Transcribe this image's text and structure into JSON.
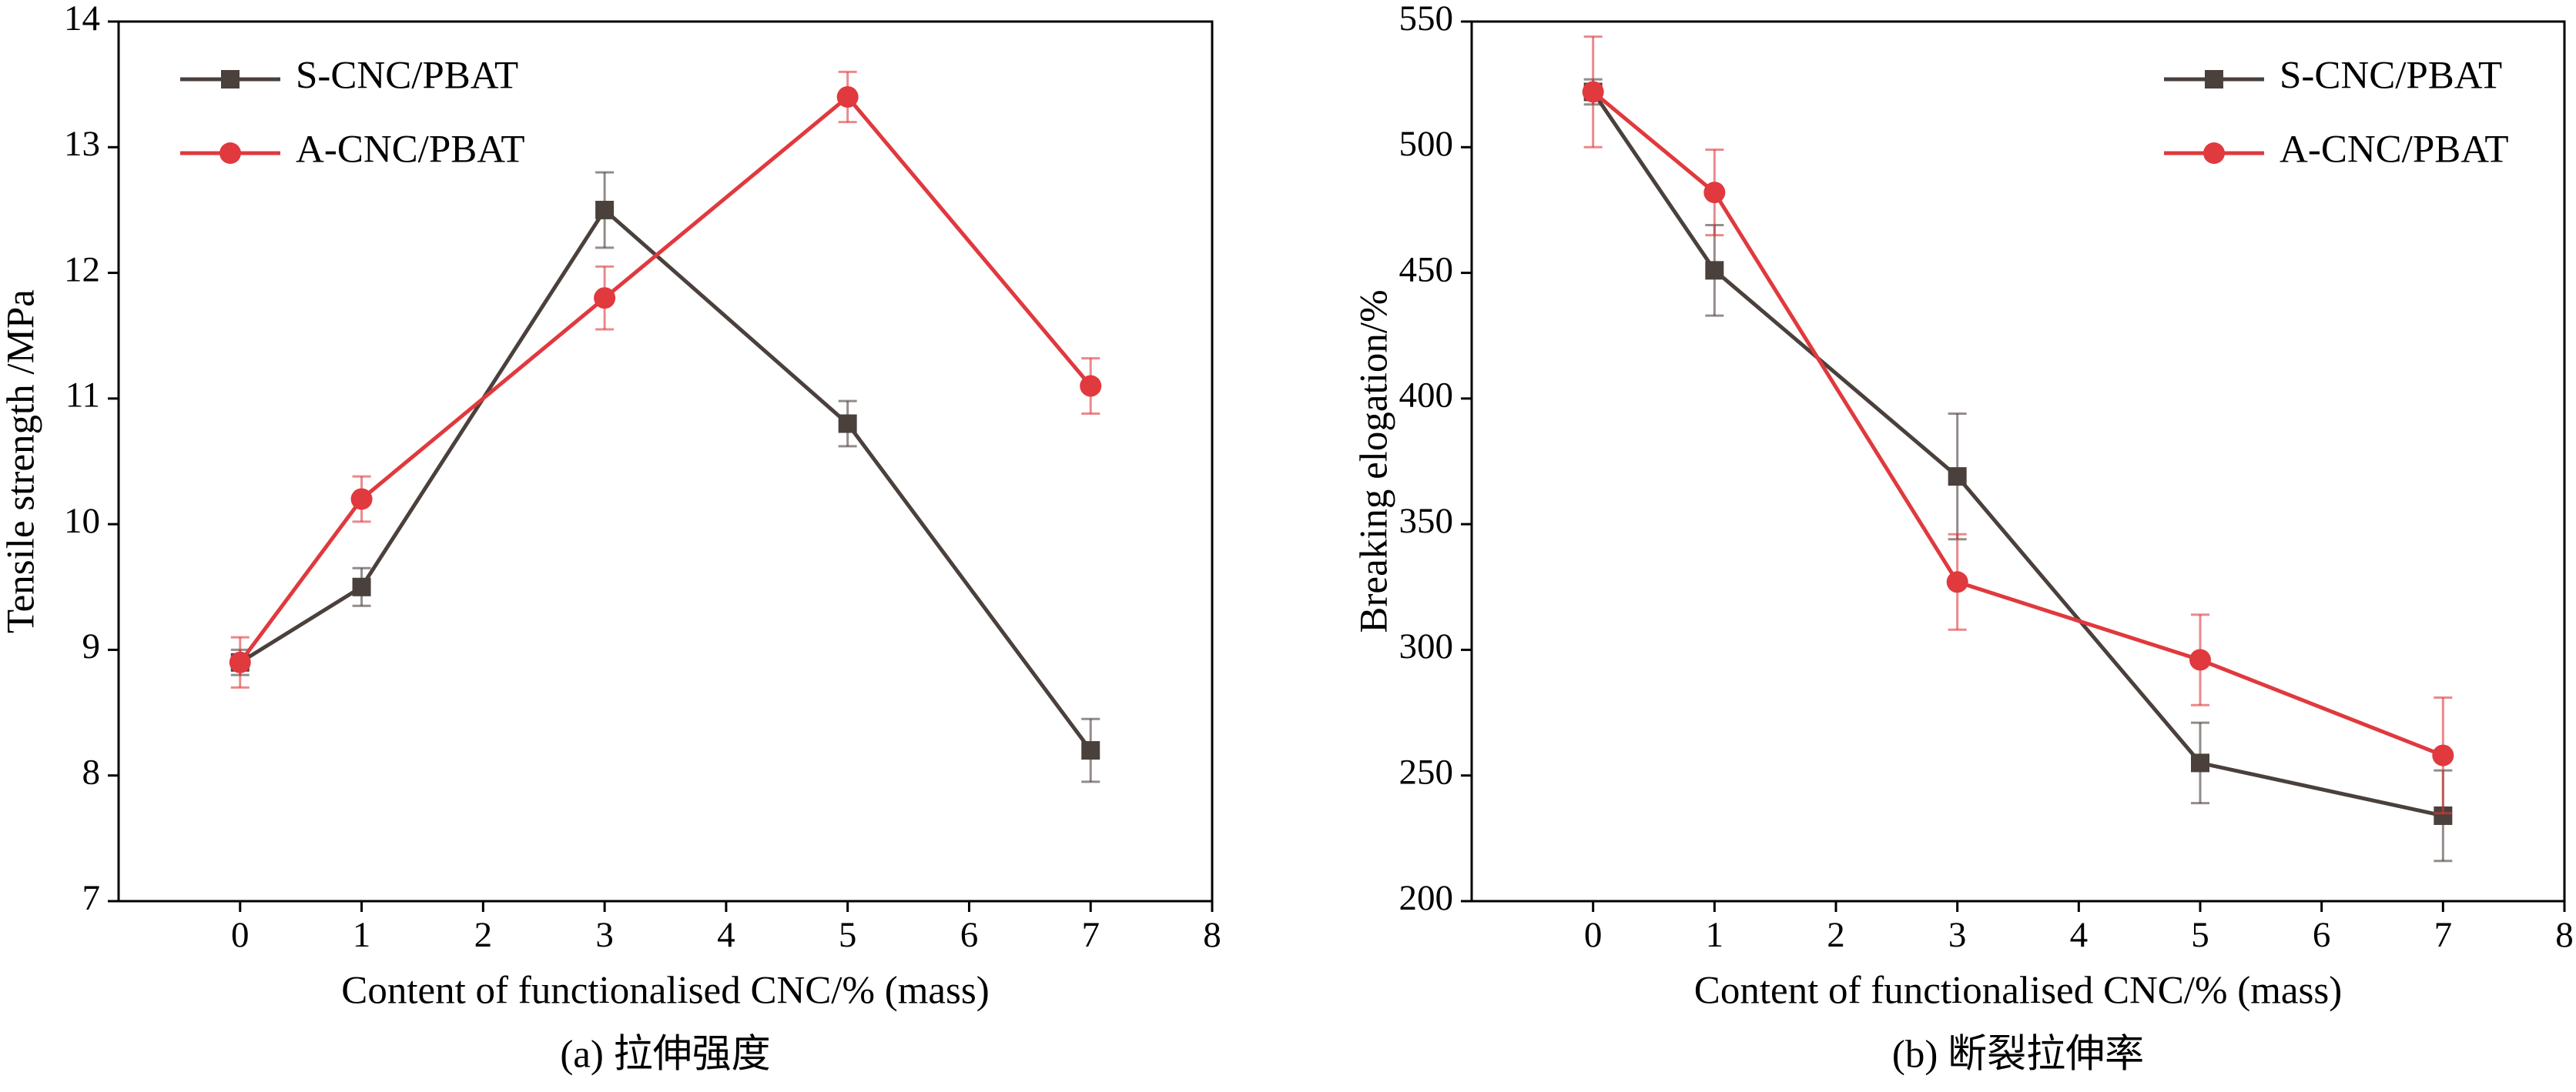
{
  "chart_data": [
    {
      "type": "line",
      "xlabel": "Content of functionalised CNC/% (mass)",
      "ylabel": "Tensile strength /MPa",
      "caption": "(a) 拉伸强度",
      "x": [
        0,
        1,
        3,
        5,
        7
      ],
      "xlim": [
        -1,
        8
      ],
      "xticks": [
        0,
        1,
        2,
        3,
        4,
        5,
        6,
        7,
        8
      ],
      "ylim": [
        7,
        14
      ],
      "yticks": [
        7,
        8,
        9,
        10,
        11,
        12,
        13,
        14
      ],
      "legend": "upper left",
      "series": [
        {
          "name": "S-CNC/PBAT",
          "color": "#4a403c",
          "marker": "square",
          "values": [
            8.9,
            9.5,
            12.5,
            10.8,
            8.2
          ],
          "errors": [
            0.1,
            0.15,
            0.3,
            0.18,
            0.25
          ]
        },
        {
          "name": "A-CNC/PBAT",
          "color": "#e0393e",
          "marker": "circle",
          "values": [
            8.9,
            10.2,
            11.8,
            13.4,
            11.1
          ],
          "errors": [
            0.2,
            0.18,
            0.25,
            0.2,
            0.22
          ]
        }
      ]
    },
    {
      "type": "line",
      "xlabel": "Content of functionalised CNC/% (mass)",
      "ylabel": "Breaking elogation/%",
      "caption": "(b) 断裂拉伸率",
      "x": [
        0,
        1,
        3,
        5,
        7
      ],
      "xlim": [
        -1,
        8
      ],
      "xticks": [
        0,
        1,
        2,
        3,
        4,
        5,
        6,
        7,
        8
      ],
      "ylim": [
        200,
        550
      ],
      "yticks": [
        200,
        250,
        300,
        350,
        400,
        450,
        500,
        550
      ],
      "legend": "upper right",
      "series": [
        {
          "name": "S-CNC/PBAT",
          "color": "#4a403c",
          "marker": "square",
          "values": [
            522,
            451,
            369,
            255,
            234
          ],
          "errors": [
            5,
            18,
            25,
            16,
            18
          ]
        },
        {
          "name": "A-CNC/PBAT",
          "color": "#e0393e",
          "marker": "circle",
          "values": [
            522,
            482,
            327,
            296,
            258
          ],
          "errors": [
            22,
            17,
            19,
            18,
            23
          ]
        }
      ]
    }
  ]
}
